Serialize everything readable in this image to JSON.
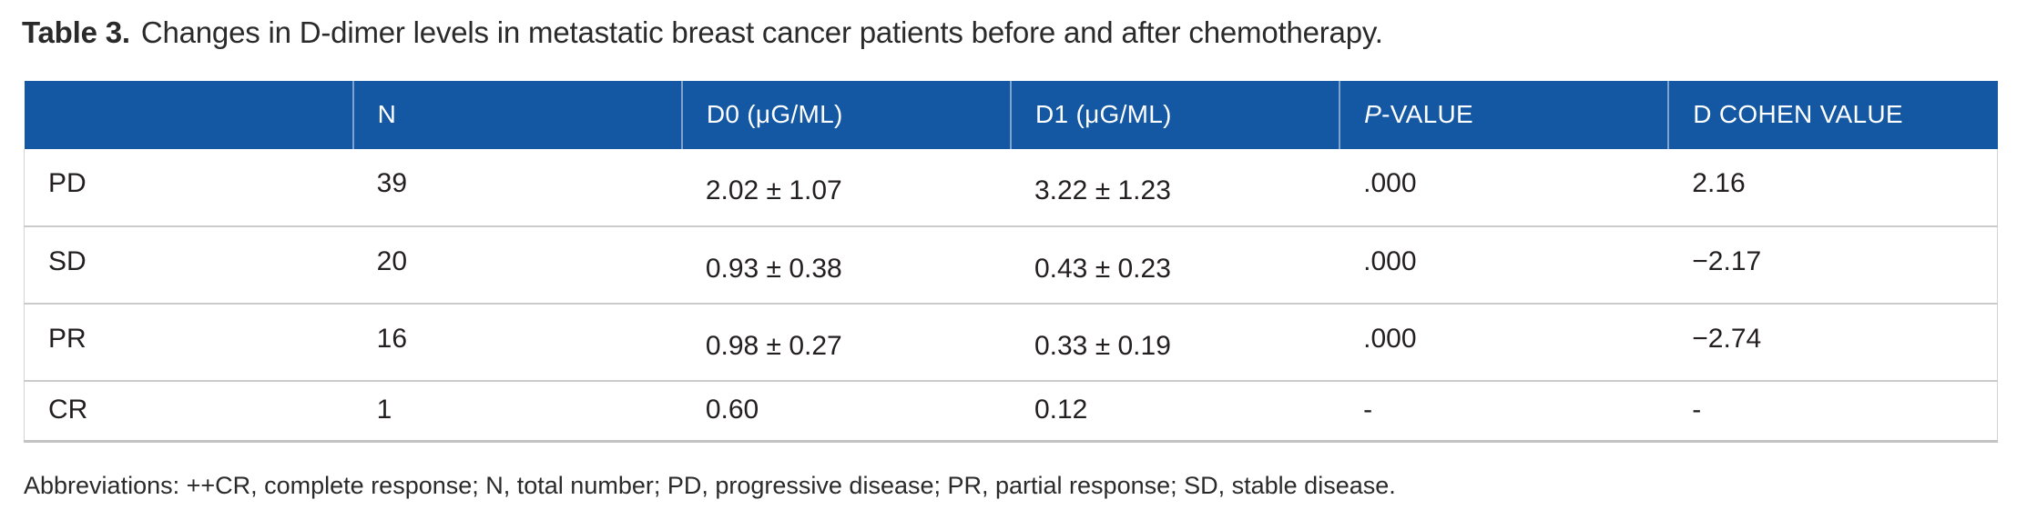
{
  "title": {
    "label": "Table 3.",
    "text": "Changes in D-dimer levels in metastatic breast cancer patients before and after chemotherapy."
  },
  "table": {
    "columns": [
      {
        "label": ""
      },
      {
        "label": "N"
      },
      {
        "label": "D0 (μG/ML)"
      },
      {
        "label": "D1 (μG/ML)"
      },
      {
        "label_italic": "P",
        "label_rest": "-VALUE"
      },
      {
        "label": "D COHEN VALUE"
      }
    ],
    "rows": [
      {
        "label": "PD",
        "n": "39",
        "d0": "2.02 ± 1.07",
        "d1": "3.22 ± 1.23",
        "p_value": ".000",
        "d_cohen": "2.16"
      },
      {
        "label": "SD",
        "n": "20",
        "d0": "0.93 ± 0.38",
        "d1": "0.43 ± 0.23",
        "p_value": ".000",
        "d_cohen": "−2.17"
      },
      {
        "label": "PR",
        "n": "16",
        "d0": "0.98 ± 0.27",
        "d1": "0.33 ± 0.19",
        "p_value": ".000",
        "d_cohen": "−2.74"
      },
      {
        "label": "CR",
        "n": "1",
        "d0": "0.60",
        "d1": "0.12",
        "p_value": "-",
        "d_cohen": "-"
      }
    ]
  },
  "footnote": "Abbreviations: ++CR, complete response; N, total number; PD, progressive disease; PR, partial response; SD, stable disease.",
  "colors": {
    "header_bg": "#1458a4",
    "header_text": "#ffffff",
    "row_border": "#cbcbcb",
    "body_text": "#231f20"
  }
}
